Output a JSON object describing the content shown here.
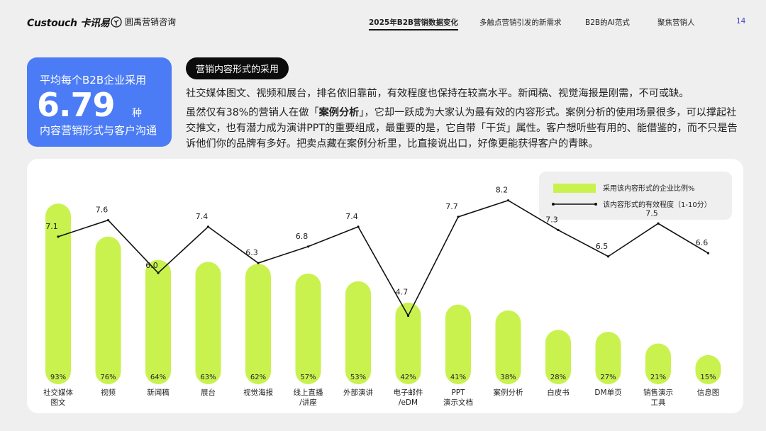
{
  "header": {
    "brand_left": "Custouch 卡讯易",
    "brand_right": "圆禹营销咨询",
    "tabs": [
      "2025年B2B营销数据变化",
      "多触点营销引发的新需求",
      "B2B的AI范式",
      "聚焦营销人"
    ],
    "page_number": "14"
  },
  "stat_card": {
    "line1": "平均每个B2B企业采用",
    "value": "6.79",
    "unit": "种",
    "line3": "内容营销形式与客户沟通"
  },
  "section_title": "营销内容形式的采用",
  "paragraph1": "社交媒体图文、视频和展台，排名依旧靠前，有效程度也保持在较高水平。新闻稿、视觉海报是刚需，不可或缺。",
  "paragraph2_before": "虽然仅有38%的营销人在做「",
  "paragraph2_bold": "案例分析",
  "paragraph2_after": "」，它却一跃成为大家认为最有效的内容形式。案例分析的使用场景很多，可以撑起社交推文，也有潜力成为演讲PPT的重要组成，最重要的是，它自带「干货」属性。客户想听些有用的、能借鉴的，而不只是告诉他们你的品牌有多好。把卖点藏在案例分析里，比直接说出口，好像更能获得客户的青睐。",
  "colors": {
    "bar": "#c9f24f",
    "accent": "#4b7cf5",
    "line": "#111111",
    "panel": "#ffffff"
  },
  "chart_data": {
    "type": "bar",
    "categories": [
      "社交媒体\n图文",
      "视频",
      "新闻稿",
      "展台",
      "视觉海报",
      "线上直播\n/讲座",
      "外部演讲",
      "电子邮件\n/eDM",
      "PPT\n演示文档",
      "案例分析",
      "白皮书",
      "DM单页",
      "销售演示\n工具",
      "信息图"
    ],
    "series": [
      {
        "name": "采用该内容形式的企业比例%",
        "type": "bar",
        "values": [
          93,
          76,
          64,
          63,
          62,
          57,
          53,
          42,
          41,
          38,
          28,
          27,
          21,
          15
        ],
        "value_labels": [
          "93%",
          "76%",
          "64%",
          "63%",
          "62%",
          "57%",
          "53%",
          "42%",
          "41%",
          "38%",
          "28%",
          "27%",
          "21%",
          "15%"
        ]
      },
      {
        "name": "该内容形式的有效程度（1-10分）",
        "type": "line",
        "values": [
          7.1,
          7.6,
          6.0,
          7.4,
          6.3,
          6.8,
          7.4,
          4.7,
          7.7,
          8.2,
          7.3,
          6.5,
          7.5,
          6.6
        ],
        "value_labels": [
          "7.1",
          "7.6",
          "6.0",
          "7.4",
          "6.3",
          "6.8",
          "7.4",
          "4.7",
          "7.7",
          "8.2",
          "7.3",
          "6.5",
          "7.5",
          "6.6"
        ]
      }
    ],
    "legend_position": "top-right",
    "grid": false
  }
}
